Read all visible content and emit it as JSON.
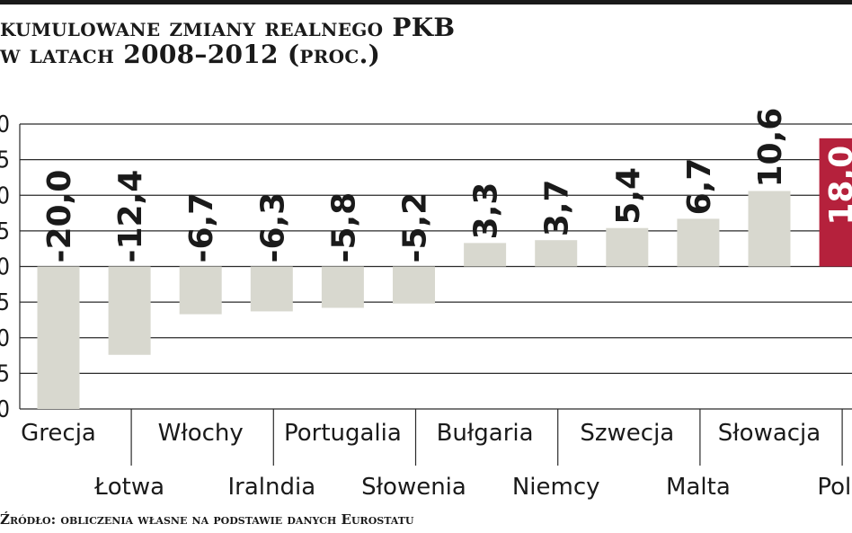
{
  "title_line1": "kumulowane zmiany realnego PKB",
  "title_line2": "w latach 2008–2012 (proc.)",
  "source": "Źródło: obliczenia własne na podstawie danych Eurostatu",
  "chart_data": {
    "type": "bar",
    "title": "kumulowane zmiany realnego PKB w latach 2008–2012 (proc.)",
    "categories": [
      "Grecja",
      "Łotwa",
      "Włochy",
      "Iralndia",
      "Portugalia",
      "Słowenia",
      "Bułgaria",
      "Niemcy",
      "Szwecja",
      "Malta",
      "Słowacja",
      "Polska"
    ],
    "category_labels": [
      "Grecja",
      "Łotwa",
      "Włochy",
      "Iralndia",
      "Portugalia",
      "Słowenia",
      "Bułgaria",
      "Niemcy",
      "Szwecja",
      "Malta",
      "Słowacja",
      "Pols"
    ],
    "values": [
      -20.0,
      -12.4,
      -6.7,
      -6.3,
      -5.8,
      -5.2,
      3.3,
      3.7,
      5.4,
      6.7,
      10.6,
      18.0
    ],
    "value_labels": [
      "-20,0",
      "-12,4",
      "-6,7",
      "-6,3",
      "-5,8",
      "-5,2",
      "3,3",
      "3,7",
      "5,4",
      "6,7",
      "10,6",
      "18,0"
    ],
    "y_tick_labels": [
      "0",
      "5",
      "0",
      "5",
      "0",
      "5",
      "0",
      "5",
      "0"
    ],
    "ylim": [
      -20,
      20
    ],
    "y_tick_step": 5,
    "grid": true,
    "colors": {
      "bar": "#d8d8cf",
      "highlight": "#b5213c",
      "text": "#1a1a1a",
      "grid": "#2a2a2a"
    },
    "highlight_index": 11
  }
}
